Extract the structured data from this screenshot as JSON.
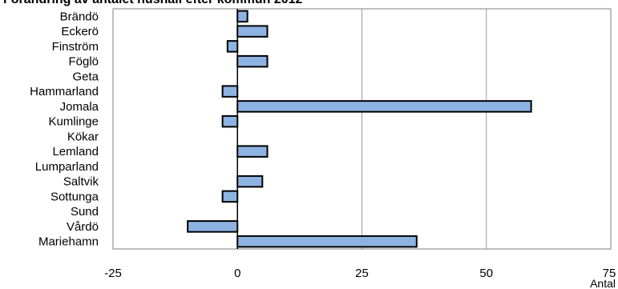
{
  "chart_data": {
    "type": "bar",
    "orientation": "horizontal",
    "title": "Förändring av antalet hushåll efter kommun 2012",
    "xlabel": "Antal",
    "ylabel": "",
    "categories": [
      "Brändö",
      "Eckerö",
      "Finström",
      "Föglö",
      "Geta",
      "Hammarland",
      "Jomala",
      "Kumlinge",
      "Kökar",
      "Lemland",
      "Lumparland",
      "Saltvik",
      "Sottunga",
      "Sund",
      "Vårdö",
      "Mariehamn"
    ],
    "values": [
      2,
      6,
      -2,
      6,
      0,
      -3,
      59,
      -3,
      0,
      6,
      0,
      5,
      -3,
      0,
      -10,
      36
    ],
    "xlim": [
      -25,
      75
    ],
    "xticks": [
      "-25",
      "0",
      "25",
      "50",
      "75"
    ],
    "xtick_values": [
      -25,
      0,
      25,
      50,
      75
    ],
    "grid": true,
    "bar_color": "#8DB3E2",
    "bar_edge_color": "#000000"
  }
}
